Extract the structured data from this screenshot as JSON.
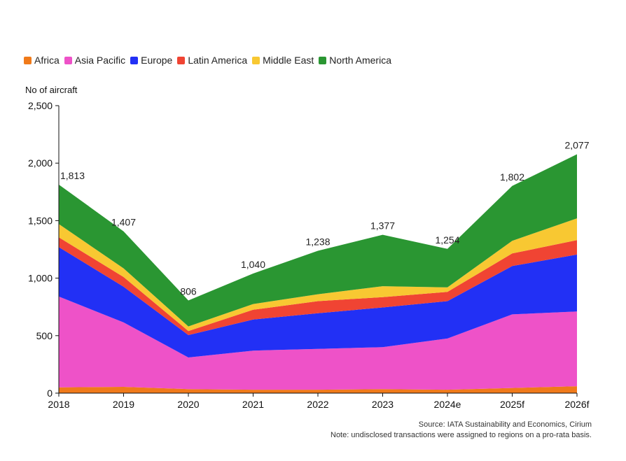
{
  "chart_data": {
    "type": "area",
    "stacked": true,
    "title": "",
    "ylabel": "No of aircraft",
    "xlabel": "",
    "ylim": [
      0,
      2500
    ],
    "yticks": [
      0,
      500,
      1000,
      1500,
      2000,
      2500
    ],
    "ytick_labels": [
      "0",
      "500",
      "1,000",
      "1,500",
      "2,000",
      "2,500"
    ],
    "categories": [
      "2018",
      "2019",
      "2020",
      "2021",
      "2022",
      "2023",
      "2024e",
      "2025f",
      "2026f"
    ],
    "series": [
      {
        "name": "Africa",
        "color": "#F07A1A",
        "values": [
          50,
          55,
          35,
          30,
          30,
          35,
          30,
          45,
          60
        ]
      },
      {
        "name": "Asia Pacific",
        "color": "#EE52C8",
        "values": [
          790,
          560,
          275,
          340,
          355,
          365,
          445,
          640,
          650
        ]
      },
      {
        "name": "Europe",
        "color": "#2230F5",
        "values": [
          430,
          310,
          195,
          270,
          310,
          345,
          325,
          420,
          495
        ]
      },
      {
        "name": "Latin America",
        "color": "#F04433",
        "values": [
          85,
          85,
          35,
          85,
          105,
          90,
          80,
          110,
          125
        ]
      },
      {
        "name": "Middle East",
        "color": "#F8C832",
        "values": [
          115,
          75,
          40,
          50,
          60,
          95,
          40,
          110,
          190
        ]
      },
      {
        "name": "North America",
        "color": "#2A9632",
        "values": [
          343,
          322,
          226,
          265,
          378,
          447,
          334,
          477,
          557
        ]
      }
    ],
    "totals": [
      1813,
      1407,
      806,
      1040,
      1238,
      1377,
      1254,
      1802,
      2077
    ],
    "total_labels": [
      "1,813",
      "1,407",
      "806",
      "1,040",
      "1,238",
      "1,377",
      "1,254",
      "1,802",
      "2,077"
    ],
    "legend_position": "top-left",
    "grid": false
  },
  "footer": {
    "source": "Source: IATA Sustainability and Economics, Cirium",
    "note": "Note: undisclosed transactions were assigned to regions on a pro-rata basis."
  }
}
